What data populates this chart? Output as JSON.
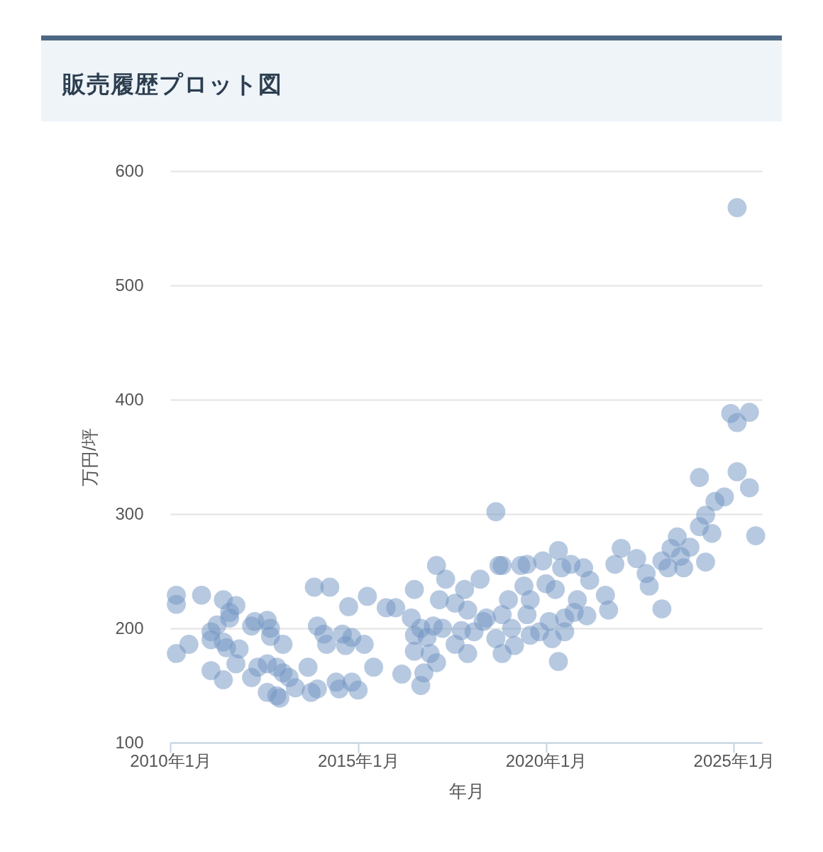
{
  "chart_data": {
    "type": "scatter",
    "title": "販売履歴プロット図",
    "xlabel": "年月",
    "ylabel": "万円/坪",
    "xlim": [
      "2010-01",
      "2025-10"
    ],
    "xticks": [
      {
        "value": "2010-01",
        "label": "2010年1月"
      },
      {
        "value": "2015-01",
        "label": "2015年1月"
      },
      {
        "value": "2020-01",
        "label": "2020年1月"
      },
      {
        "value": "2025-01",
        "label": "2025年1月"
      }
    ],
    "ylim": [
      100,
      600
    ],
    "yticks": [
      100,
      200,
      300,
      400,
      500,
      600
    ],
    "grid": "y",
    "marker": "circle",
    "series": [
      {
        "color": "#6f94c2",
        "x": [
          "2010-03",
          "2010-03",
          "2010-03",
          "2010-07",
          "2010-11",
          "2011-02",
          "2011-02",
          "2011-02",
          "2011-04",
          "2011-06",
          "2011-06",
          "2011-06",
          "2011-08",
          "2011-08",
          "2011-07",
          "2011-10",
          "2011-10",
          "2011-11",
          "2012-03",
          "2012-03",
          "2012-04",
          "2012-05",
          "2012-08",
          "2012-08",
          "2012-08",
          "2012-09",
          "2012-09",
          "2012-11",
          "2012-11",
          "2012-12",
          "2013-01",
          "2013-01",
          "2013-03",
          "2013-05",
          "2013-09",
          "2013-10",
          "2013-11",
          "2013-12",
          "2013-12",
          "2014-02",
          "2014-03",
          "2014-04",
          "2014-06",
          "2014-07",
          "2014-08",
          "2014-09",
          "2014-10",
          "2014-11",
          "2014-11",
          "2015-01",
          "2015-03",
          "2015-04",
          "2015-06",
          "2015-10",
          "2016-01",
          "2016-03",
          "2016-06",
          "2016-07",
          "2016-07",
          "2016-07",
          "2016-09",
          "2016-09",
          "2016-10",
          "2016-11",
          "2016-12",
          "2017-01",
          "2017-02",
          "2017-02",
          "2017-03",
          "2017-04",
          "2017-05",
          "2017-08",
          "2017-08",
          "2017-10",
          "2017-11",
          "2017-12",
          "2017-12",
          "2018-02",
          "2018-04",
          "2018-05",
          "2018-06",
          "2018-09",
          "2018-09",
          "2018-10",
          "2018-11",
          "2018-11",
          "2018-11",
          "2019-01",
          "2019-02",
          "2019-03",
          "2019-05",
          "2019-06",
          "2019-07",
          "2019-07",
          "2019-08",
          "2019-08",
          "2019-11",
          "2019-12",
          "2020-01",
          "2020-02",
          "2020-03",
          "2020-04",
          "2020-05",
          "2020-05",
          "2020-06",
          "2020-07",
          "2020-07",
          "2020-09",
          "2020-10",
          "2020-11",
          "2021-01",
          "2021-02",
          "2021-03",
          "2021-08",
          "2021-09",
          "2021-11",
          "2022-01",
          "2022-06",
          "2022-09",
          "2022-10",
          "2023-02",
          "2023-02",
          "2023-04",
          "2023-05",
          "2023-07",
          "2023-08",
          "2023-09",
          "2023-11",
          "2024-02",
          "2024-02",
          "2024-04",
          "2024-04",
          "2024-06",
          "2024-07",
          "2024-10",
          "2024-12",
          "2025-02",
          "2025-02",
          "2025-02",
          "2025-06",
          "2025-06",
          "2025-08"
        ],
        "values": [
          229,
          221,
          178,
          186,
          229,
          197,
          163,
          190,
          203,
          225,
          155,
          188,
          209,
          214,
          183,
          220,
          169,
          182,
          157,
          202,
          206,
          166,
          169,
          207,
          144,
          200,
          193,
          166,
          141,
          139,
          186,
          161,
          157,
          148,
          166,
          144,
          236,
          202,
          147,
          195,
          186,
          236,
          153,
          147,
          195,
          185,
          219,
          192,
          153,
          146,
          186,
          228,
          166,
          218,
          218,
          160,
          209,
          234,
          194,
          180,
          150,
          200,
          161,
          192,
          178,
          202,
          255,
          170,
          225,
          200,
          243,
          186,
          222,
          198,
          234,
          178,
          216,
          197,
          243,
          206,
          209,
          302,
          191,
          255,
          178,
          255,
          212,
          225,
          200,
          185,
          255,
          237,
          212,
          256,
          194,
          225,
          197,
          259,
          239,
          206,
          191,
          234,
          268,
          171,
          253,
          209,
          197,
          256,
          214,
          225,
          253,
          211,
          242,
          229,
          216,
          256,
          270,
          261,
          248,
          237,
          259,
          217,
          253,
          270,
          280,
          263,
          253,
          271,
          289,
          332,
          299,
          258,
          283,
          311,
          315,
          388,
          568,
          337,
          380,
          389,
          323,
          281
        ]
      }
    ]
  }
}
